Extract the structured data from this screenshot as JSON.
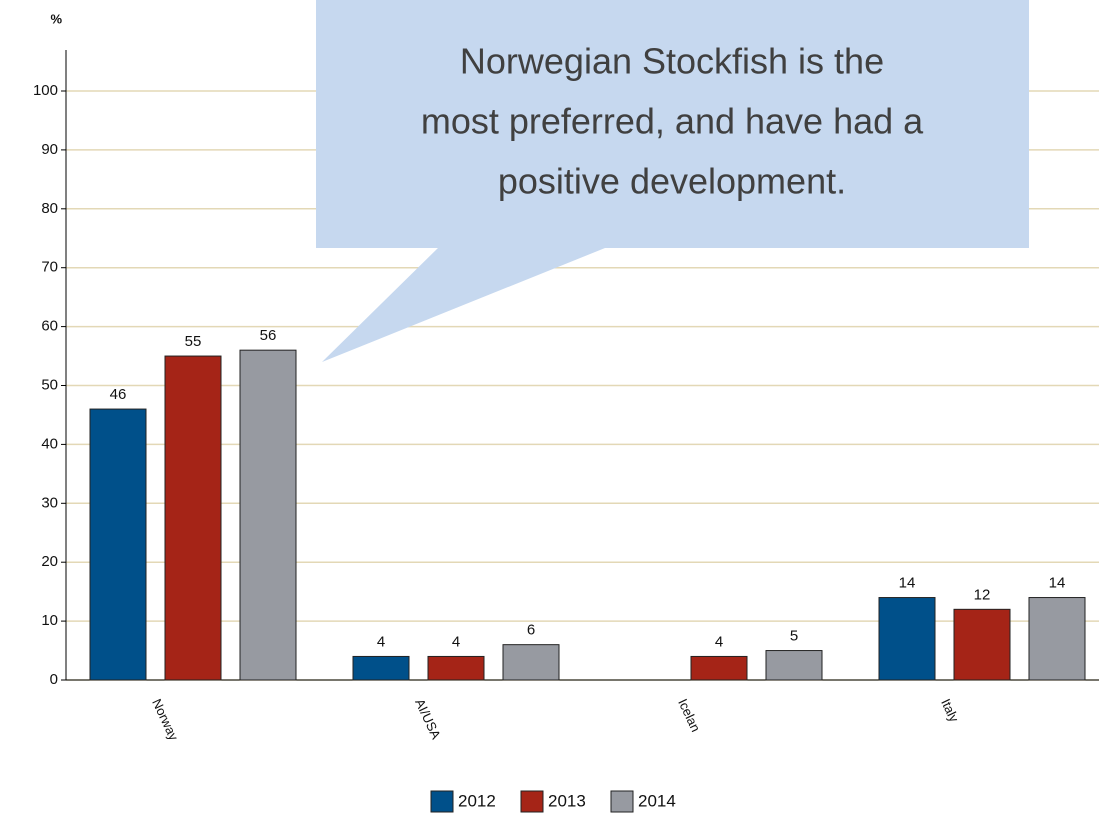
{
  "chart_data": {
    "type": "bar",
    "y_label": "%",
    "annotation": [
      "Norwegian Stockfish is the",
      "most preferred, and have had a",
      "positive development."
    ],
    "categories": [
      "Norway",
      "AI/USA",
      "Icelan",
      "Italy"
    ],
    "series": [
      {
        "name": "2012",
        "color": "#00508a",
        "values": [
          46,
          4,
          null,
          14
        ]
      },
      {
        "name": "2013",
        "color": "#a52417",
        "values": [
          55,
          4,
          4,
          12
        ]
      },
      {
        "name": "2014",
        "color": "#979aa1",
        "values": [
          56,
          6,
          5,
          14
        ]
      }
    ],
    "ylim": [
      0,
      100
    ],
    "yticks": [
      0,
      10,
      20,
      30,
      40,
      50,
      60,
      70,
      80,
      90,
      100
    ],
    "grid": true,
    "legend": "bottom"
  }
}
